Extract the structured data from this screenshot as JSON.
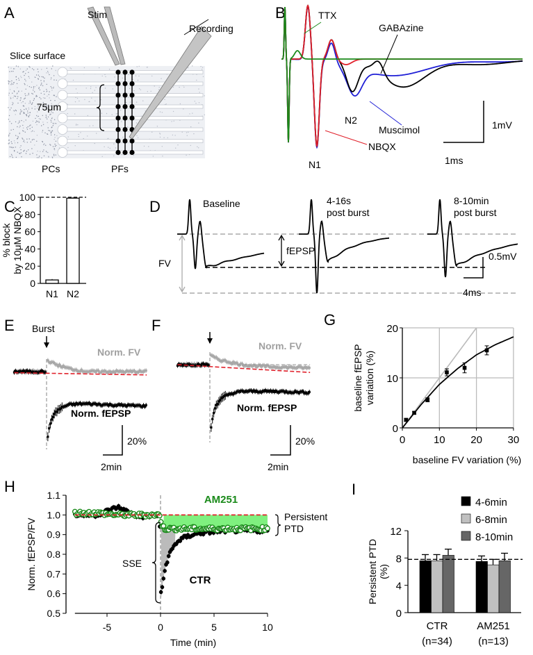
{
  "panel_labels": {
    "a": "A",
    "b": "B",
    "c": "C",
    "d": "D",
    "e": "E",
    "f": "F",
    "g": "G",
    "h": "H",
    "i": "I"
  },
  "panel_a": {
    "stim": "Stim",
    "recording": "Recording",
    "slice_surface": "Slice surface",
    "distance": "75μm",
    "pcs": "PCs",
    "pfs": "PFs"
  },
  "panel_b": {
    "ttx": "TTX",
    "gabazine": "GABAzine",
    "n2": "N2",
    "muscimol": "Muscimol",
    "nbqx": "NBQX",
    "n1": "N1",
    "scale_v": "1mV",
    "scale_h": "1ms"
  },
  "panel_d": {
    "baseline": "Baseline",
    "post1_l1": "4-16s",
    "post1_l2": "post burst",
    "post2_l1": "8-10min",
    "post2_l2": "post burst",
    "fepsp": "fEPSP",
    "fv": "FV",
    "scale_v": "0.5mV",
    "scale_h": "4ms"
  },
  "panel_e": {
    "burst": "Burst",
    "norm_fv": "Norm. FV",
    "norm_fepsp": "Norm. fEPSP",
    "scale_v": "20%",
    "scale_h": "2min"
  },
  "panel_f": {
    "norm_fv": "Norm. FV",
    "norm_fepsp": "Norm. fEPSP",
    "scale_v": "20%",
    "scale_h": "2min"
  },
  "colors": {
    "ttx": "#1a8a1a",
    "gabazine": "#000000",
    "muscimol": "#1f1fd6",
    "nbqx": "#e0202a",
    "fv": "#a0a0a0",
    "fit_line": "#e0202a",
    "am251": "#1a8a1a",
    "am251_fill": "#7ff07f",
    "bar_4_6": "#000000",
    "bar_6_8": "#c0c0c0",
    "bar_8_10": "#666666"
  },
  "chart_data": [
    {
      "panel": "C",
      "type": "bar",
      "categories": [
        "N1",
        "N2"
      ],
      "values": [
        4,
        99
      ],
      "errors": [
        1,
        1
      ],
      "ylabel_l1": "% block",
      "ylabel_l2": "by 10μM NBQX",
      "ylim": [
        0,
        100
      ],
      "yticks": [
        "0",
        "20",
        "40",
        "60",
        "80",
        "100"
      ],
      "reference_line": 100
    },
    {
      "panel": "E",
      "type": "scatter",
      "x_unit": "min",
      "y_unit": "% of baseline",
      "series": [
        {
          "name": "Norm. FV",
          "x": [
            -3,
            -0.1,
            0.1,
            0.5,
            1,
            2,
            3,
            4,
            6,
            9.3
          ],
          "y": [
            100,
            100,
            110,
            108,
            106,
            103,
            101,
            100,
            100,
            100
          ]
        },
        {
          "name": "Norm. fEPSP",
          "x": [
            -3,
            -0.1,
            0.05,
            0.3,
            0.6,
            1,
            1.5,
            2,
            3,
            4,
            6,
            9.3
          ],
          "y": [
            100,
            100,
            36,
            52,
            60,
            65,
            68,
            70,
            71,
            71,
            70,
            69
          ]
        }
      ],
      "fit_line": {
        "x": [
          -3,
          9.3
        ],
        "y": [
          99,
          97
        ]
      }
    },
    {
      "panel": "F",
      "type": "scatter",
      "x_unit": "min",
      "y_unit": "% of baseline",
      "series": [
        {
          "name": "Norm. FV",
          "x": [
            -3,
            -0.1,
            0.1,
            0.5,
            1,
            2,
            3,
            4,
            6,
            9.3
          ],
          "y": [
            100,
            100,
            108,
            106,
            104,
            102,
            100,
            99,
            98,
            97
          ]
        },
        {
          "name": "Norm. fEPSP",
          "x": [
            -3,
            -0.1,
            0.05,
            0.3,
            0.6,
            1,
            1.5,
            2,
            3,
            4,
            6,
            9.3
          ],
          "y": [
            100,
            100,
            38,
            55,
            64,
            69,
            72,
            74,
            76,
            76,
            76,
            75
          ]
        }
      ],
      "fit_line": {
        "x": [
          -3,
          9.3
        ],
        "y": [
          100,
          93
        ]
      }
    },
    {
      "panel": "G",
      "type": "scatter",
      "xlabel": "baseline FV variation (%)",
      "ylabel_l1": "baseline fEPSP",
      "ylabel_l2": "variation (%)",
      "xlim": [
        0,
        30
      ],
      "ylim": [
        0,
        20
      ],
      "xticks": [
        "0",
        "10",
        "20",
        "30"
      ],
      "yticks": [
        "0",
        "10",
        "20"
      ],
      "grid": true,
      "x": [
        1,
        3.2,
        6.8,
        12,
        16.8,
        22.8
      ],
      "y": [
        1.6,
        3,
        5.6,
        11.1,
        12,
        15.5
      ],
      "errors": [
        0.3,
        0.3,
        0.4,
        0.7,
        1.0,
        0.9
      ],
      "fit": {
        "x": [
          0,
          5,
          10,
          15,
          20,
          25,
          30
        ],
        "y": [
          0,
          4.6,
          8.7,
          11.9,
          14.6,
          16.6,
          18.2
        ]
      },
      "identity": {
        "x": [
          0,
          20
        ],
        "y": [
          0,
          20
        ]
      }
    },
    {
      "panel": "H",
      "type": "scatter",
      "xlabel": "Time (min)",
      "ylabel": "Norm. fEPSP/FV",
      "xlim": [
        -8,
        10
      ],
      "ylim": [
        0.5,
        1.1
      ],
      "xticks": [
        "-5",
        "0",
        "5",
        "10"
      ],
      "yticks": [
        "0.5",
        "0.6",
        "0.7",
        "0.8",
        "0.9",
        "1.0",
        "1.1"
      ],
      "series": [
        {
          "name": "CTR",
          "x": [
            -8,
            -6,
            -4,
            -2,
            -0.1,
            0.05,
            0.2,
            0.4,
            0.7,
            1,
            1.5,
            2,
            3,
            4,
            6,
            8,
            10
          ],
          "y": [
            1.0,
            1.0,
            1.04,
            0.99,
            1.0,
            0.57,
            0.65,
            0.72,
            0.78,
            0.82,
            0.86,
            0.88,
            0.9,
            0.91,
            0.92,
            0.92,
            0.92
          ]
        },
        {
          "name": "AM251",
          "x": [
            -8,
            -6,
            -4,
            -2,
            -0.1,
            0.05,
            0.2,
            0.4,
            0.7,
            1,
            1.5,
            2,
            3,
            4,
            6,
            8,
            10
          ],
          "y": [
            1.01,
            1.01,
            1.0,
            1.0,
            1.0,
            0.97,
            0.94,
            0.93,
            0.93,
            0.93,
            0.93,
            0.93,
            0.93,
            0.93,
            0.93,
            0.93,
            0.93
          ]
        }
      ],
      "reference_line": 1.0,
      "annotations": {
        "am251": "AM251",
        "ctr": "CTR",
        "sse": "SSE",
        "persistent_l1": "Persistent",
        "persistent_l2": "PTD"
      }
    },
    {
      "panel": "I",
      "type": "bar",
      "ylabel_l1": "Persistent PTD",
      "ylabel_l2": "(%)",
      "ylim": [
        0,
        12
      ],
      "yticks": [
        "0",
        "4",
        "8",
        "12"
      ],
      "categories": [
        "CTR",
        "AM251"
      ],
      "category_n": [
        "(n=34)",
        "(n=13)"
      ],
      "series": [
        {
          "name": "4-6min",
          "values": [
            7.6,
            7.5
          ],
          "errors": [
            0.9,
            0.8
          ]
        },
        {
          "name": "6-8min",
          "values": [
            7.6,
            7.0
          ],
          "errors": [
            0.9,
            0.8
          ]
        },
        {
          "name": "8-10min",
          "values": [
            8.4,
            7.6
          ],
          "errors": [
            0.9,
            1.1
          ]
        }
      ],
      "reference_line": 7.8,
      "legend": "top-right"
    }
  ]
}
